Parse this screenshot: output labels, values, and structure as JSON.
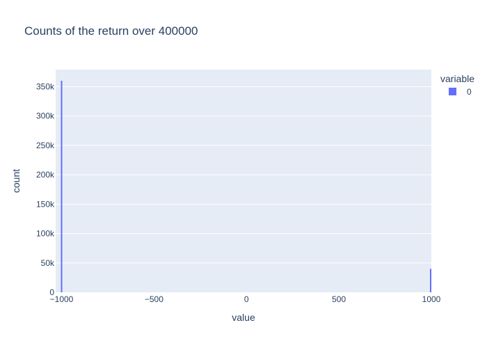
{
  "chart_data": {
    "type": "bar",
    "title": "Counts of the return over 400000",
    "xlabel": "value",
    "ylabel": "count",
    "xlim": [
      -1032,
      1000
    ],
    "ylim": [
      0,
      378947
    ],
    "x_ticks": [
      -1000,
      -500,
      0,
      500,
      1000
    ],
    "x_tick_labels": [
      "−1000",
      "−500",
      "0",
      "500",
      "1000"
    ],
    "y_ticks": [
      0,
      50000,
      100000,
      150000,
      200000,
      250000,
      300000,
      350000
    ],
    "y_tick_labels": [
      "0",
      "50k",
      "100k",
      "150k",
      "200k",
      "250k",
      "300k",
      "350k"
    ],
    "grid": true,
    "legend": {
      "title": "variable",
      "placement": "top-right",
      "entries": [
        {
          "name": "0",
          "color": "#636efa"
        }
      ]
    },
    "series": [
      {
        "name": "0",
        "color": "#636efa",
        "bars": [
          {
            "x": -1000,
            "value": 360000
          },
          {
            "x": 1000,
            "value": 40000
          }
        ]
      }
    ]
  }
}
